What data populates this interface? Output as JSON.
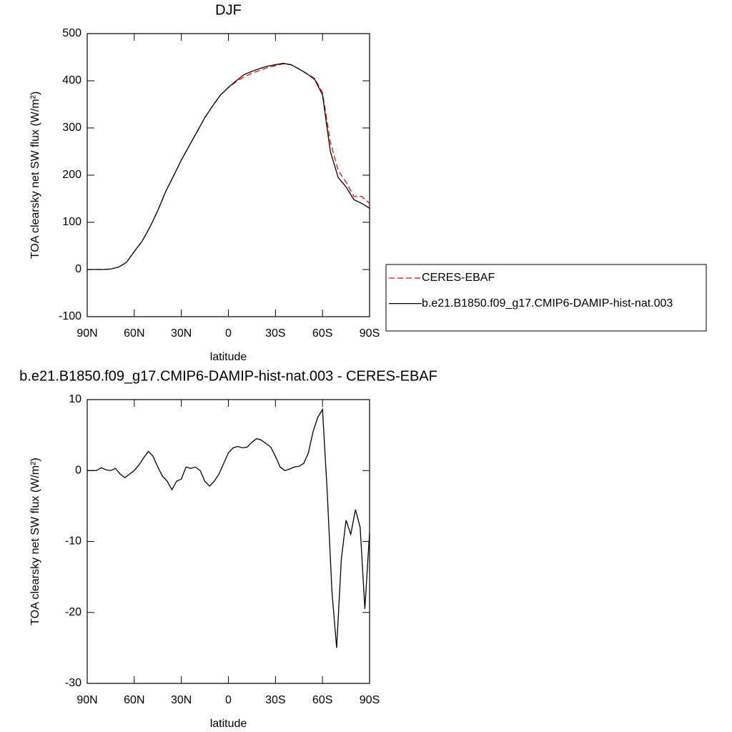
{
  "chart_data": [
    {
      "type": "line",
      "title": "DJF",
      "xlabel": "latitude",
      "ylabel": "TOA clearsky net SW flux (W/m²)",
      "x": [
        90,
        85,
        80,
        75,
        70,
        65,
        60,
        55,
        50,
        45,
        40,
        35,
        30,
        25,
        20,
        15,
        10,
        5,
        0,
        -5,
        -10,
        -15,
        -20,
        -25,
        -30,
        -35,
        -40,
        -45,
        -50,
        -55,
        -60,
        -65,
        -70,
        -75,
        -80,
        -85,
        -90
      ],
      "series": [
        {
          "name": "CERES-EBAF",
          "color": "#ff0000",
          "style": "dashed",
          "values": [
            0,
            0,
            0,
            1,
            5,
            15,
            38,
            60,
            90,
            125,
            165,
            198,
            232,
            262,
            292,
            322,
            347,
            370,
            386,
            398,
            408,
            416,
            422,
            428,
            432,
            436,
            434,
            425,
            415,
            405,
            375,
            270,
            210,
            185,
            155,
            155,
            140
          ]
        },
        {
          "name": "b.e21.B1850.f09_g17.CMIP6-DAMIP-hist-nat.003",
          "color": "#000000",
          "style": "solid",
          "values": [
            0,
            0,
            0,
            1,
            5,
            15,
            38,
            60,
            90,
            125,
            165,
            198,
            232,
            262,
            292,
            322,
            347,
            370,
            386,
            400,
            413,
            420,
            426,
            431,
            434,
            437,
            434,
            425,
            415,
            403,
            370,
            250,
            195,
            175,
            148,
            140,
            130
          ]
        }
      ],
      "xlim": [
        90,
        -90
      ],
      "xticks": [
        {
          "value": 90,
          "label": "90N"
        },
        {
          "value": 60,
          "label": "60N"
        },
        {
          "value": 30,
          "label": "30N"
        },
        0,
        {
          "value": -30,
          "label": "30S"
        },
        {
          "value": -60,
          "label": "60S"
        },
        {
          "value": -90,
          "label": "90S"
        }
      ],
      "ylim": [
        -100,
        500
      ],
      "yticks": [
        -100,
        0,
        100,
        200,
        300,
        400,
        500
      ],
      "legend": "outside-right"
    },
    {
      "type": "line",
      "title": "b.e21.B1850.f09_g17.CMIP6-DAMIP-hist-nat.003 - CERES-EBAF",
      "xlabel": "latitude",
      "ylabel": "TOA clearsky net SW flux (W/m²)",
      "x": [
        90,
        87,
        84,
        81,
        78,
        75,
        72,
        69,
        66,
        63,
        60,
        57,
        54,
        51,
        48,
        45,
        42,
        39,
        36,
        33,
        30,
        27,
        24,
        21,
        18,
        15,
        12,
        9,
        6,
        3,
        0,
        -3,
        -6,
        -9,
        -12,
        -15,
        -18,
        -21,
        -24,
        -27,
        -30,
        -33,
        -36,
        -39,
        -42,
        -45,
        -48,
        -51,
        -54,
        -57,
        -60,
        -63,
        -66,
        -69,
        -72,
        -75,
        -78,
        -81,
        -84,
        -87,
        -90
      ],
      "series": [
        {
          "color": "#000000",
          "style": "solid",
          "values": [
            0,
            0,
            0,
            0.4,
            0.1,
            0,
            0.3,
            -0.5,
            -1,
            -0.5,
            0,
            0.8,
            1.8,
            2.7,
            2,
            0.5,
            -0.8,
            -1.5,
            -2.7,
            -1.5,
            -1.2,
            0.5,
            0.3,
            0.5,
            0,
            -1.5,
            -2.2,
            -1.5,
            -0.5,
            1.0,
            2.5,
            3.2,
            3.4,
            3.2,
            3.3,
            4.0,
            4.5,
            4.3,
            3.8,
            3.3,
            2.0,
            0.5,
            0,
            0.2,
            0.5,
            0.6,
            1.0,
            2.5,
            5.5,
            7.5,
            8.6,
            -3,
            -17,
            -25,
            -12.5,
            -7,
            -9,
            -5.5,
            -8,
            -19.5,
            -8.7
          ]
        }
      ],
      "xlim": [
        90,
        -90
      ],
      "xticks": [
        {
          "value": 90,
          "label": "90N"
        },
        {
          "value": 60,
          "label": "60N"
        },
        {
          "value": 30,
          "label": "30N"
        },
        0,
        {
          "value": -30,
          "label": "30S"
        },
        {
          "value": -60,
          "label": "60S"
        },
        {
          "value": -90,
          "label": "90S"
        }
      ],
      "ylim": [
        -30,
        10
      ],
      "yticks": [
        -30,
        -20,
        -10,
        0,
        10
      ]
    }
  ]
}
